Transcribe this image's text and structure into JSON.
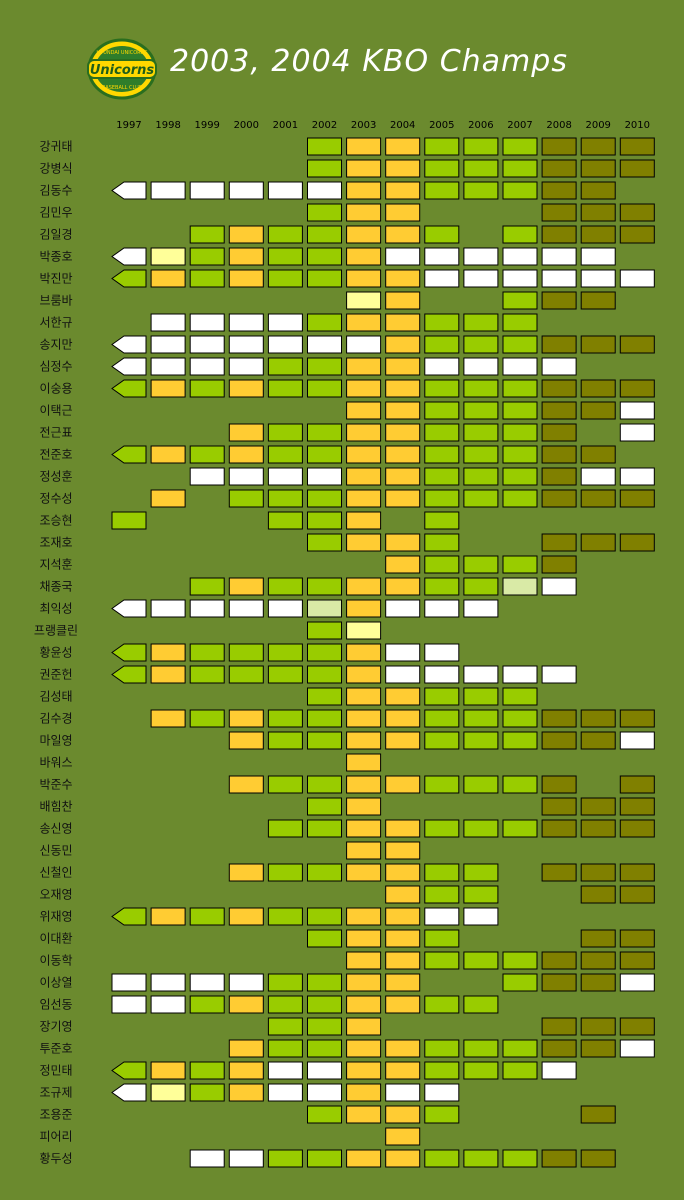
{
  "title": "2003, 2004 KBO Champs",
  "logo": {
    "top_text": "HYUNDAI UNICORNS",
    "main_text": "Unicorns",
    "bottom_text": "BASEBALL CLUB"
  },
  "colors": {
    "background": "#6b8a2e",
    "G": "#99cc00",
    "Y": "#ffcc33",
    "W": "#ffffff",
    "O": "#808000",
    "P": "#ffff99",
    "L": "#d9eaa6"
  },
  "chart_data": {
    "type": "heatmap",
    "years": [
      "1997",
      "1998",
      "1999",
      "2000",
      "2001",
      "2002",
      "2003",
      "2004",
      "2005",
      "2006",
      "2007",
      "2008",
      "2009",
      "2010"
    ],
    "legend_codes": {
      "G": "green",
      "Y": "yellow",
      "W": "white",
      "O": "olive",
      "P": "pale-yellow",
      "L": "pale-green",
      "A": "arrow (career began before 1997)"
    },
    "players": [
      {
        "name": "강귀태",
        "cells": [
          "",
          "",
          "",
          "",
          "",
          "G",
          "Y",
          "Y",
          "G",
          "G",
          "G",
          "O",
          "O",
          "O"
        ],
        "arrow": ""
      },
      {
        "name": "강병식",
        "cells": [
          "",
          "",
          "",
          "",
          "",
          "G",
          "Y",
          "Y",
          "G",
          "G",
          "G",
          "O",
          "O",
          "O"
        ],
        "arrow": ""
      },
      {
        "name": "김동수",
        "cells": [
          "W",
          "W",
          "W",
          "W",
          "W",
          "W",
          "Y",
          "Y",
          "G",
          "G",
          "G",
          "O",
          "O",
          ""
        ],
        "arrow": "W"
      },
      {
        "name": "김민우",
        "cells": [
          "",
          "",
          "",
          "",
          "",
          "G",
          "Y",
          "Y",
          "",
          "",
          "",
          "O",
          "O",
          "O"
        ],
        "arrow": ""
      },
      {
        "name": "김일경",
        "cells": [
          "",
          "",
          "G",
          "Y",
          "G",
          "G",
          "Y",
          "Y",
          "G",
          "",
          "G",
          "O",
          "O",
          "O"
        ],
        "arrow": ""
      },
      {
        "name": "박종호",
        "cells": [
          "W",
          "P",
          "G",
          "Y",
          "G",
          "G",
          "Y",
          "W",
          "W",
          "W",
          "W",
          "W",
          "W",
          ""
        ],
        "arrow": "W"
      },
      {
        "name": "박진만",
        "cells": [
          "G",
          "Y",
          "G",
          "Y",
          "G",
          "G",
          "Y",
          "Y",
          "W",
          "W",
          "W",
          "W",
          "W",
          "W"
        ],
        "arrow": "G"
      },
      {
        "name": "브룸바",
        "cells": [
          "",
          "",
          "",
          "",
          "",
          "",
          "P",
          "Y",
          "",
          "",
          "G",
          "O",
          "O",
          ""
        ],
        "arrow": ""
      },
      {
        "name": "서한규",
        "cells": [
          "",
          "W",
          "W",
          "W",
          "W",
          "G",
          "Y",
          "Y",
          "G",
          "G",
          "G",
          "",
          "",
          ""
        ],
        "arrow": ""
      },
      {
        "name": "송지만",
        "cells": [
          "W",
          "W",
          "W",
          "W",
          "W",
          "W",
          "W",
          "Y",
          "G",
          "G",
          "G",
          "O",
          "O",
          "O"
        ],
        "arrow": "W"
      },
      {
        "name": "심정수",
        "cells": [
          "W",
          "W",
          "W",
          "W",
          "G",
          "G",
          "Y",
          "Y",
          "W",
          "W",
          "W",
          "W",
          "",
          ""
        ],
        "arrow": "W"
      },
      {
        "name": "이숭용",
        "cells": [
          "G",
          "Y",
          "G",
          "Y",
          "G",
          "G",
          "Y",
          "Y",
          "G",
          "G",
          "G",
          "O",
          "O",
          "O"
        ],
        "arrow": "G"
      },
      {
        "name": "이택근",
        "cells": [
          "",
          "",
          "",
          "",
          "",
          "",
          "Y",
          "Y",
          "G",
          "G",
          "G",
          "O",
          "O",
          "W"
        ],
        "arrow": ""
      },
      {
        "name": "전근표",
        "cells": [
          "",
          "",
          "",
          "Y",
          "G",
          "G",
          "Y",
          "Y",
          "G",
          "G",
          "G",
          "O",
          "",
          "W"
        ],
        "arrow": ""
      },
      {
        "name": "전준호",
        "cells": [
          "G",
          "Y",
          "G",
          "Y",
          "G",
          "G",
          "Y",
          "Y",
          "G",
          "G",
          "G",
          "O",
          "O",
          ""
        ],
        "arrow": "G"
      },
      {
        "name": "정성훈",
        "cells": [
          "",
          "",
          "W",
          "W",
          "W",
          "W",
          "Y",
          "Y",
          "G",
          "G",
          "G",
          "O",
          "W",
          "W"
        ],
        "arrow": ""
      },
      {
        "name": "정수성",
        "cells": [
          "",
          "Y",
          "",
          "G",
          "G",
          "G",
          "Y",
          "Y",
          "G",
          "G",
          "G",
          "O",
          "O",
          "O"
        ],
        "arrow": ""
      },
      {
        "name": "조승현",
        "cells": [
          "G",
          "",
          "",
          "",
          "G",
          "G",
          "Y",
          "",
          "G",
          "",
          "",
          "",
          "",
          ""
        ],
        "arrow": ""
      },
      {
        "name": "조재호",
        "cells": [
          "",
          "",
          "",
          "",
          "",
          "G",
          "Y",
          "Y",
          "G",
          "",
          "",
          "O",
          "O",
          "O"
        ],
        "arrow": ""
      },
      {
        "name": "지석훈",
        "cells": [
          "",
          "",
          "",
          "",
          "",
          "",
          "",
          "Y",
          "G",
          "G",
          "G",
          "O",
          "",
          ""
        ],
        "arrow": ""
      },
      {
        "name": "채종국",
        "cells": [
          "",
          "",
          "G",
          "Y",
          "G",
          "G",
          "Y",
          "Y",
          "G",
          "G",
          "L",
          "W",
          "",
          ""
        ],
        "arrow": ""
      },
      {
        "name": "최익성",
        "cells": [
          "W",
          "W",
          "W",
          "W",
          "W",
          "L",
          "Y",
          "W",
          "W",
          "W",
          "",
          "",
          "",
          ""
        ],
        "arrow": "W"
      },
      {
        "name": "프랭클린",
        "cells": [
          "",
          "",
          "",
          "",
          "",
          "G",
          "P",
          "",
          "",
          "",
          "",
          "",
          "",
          ""
        ],
        "arrow": ""
      },
      {
        "name": "황윤성",
        "cells": [
          "G",
          "Y",
          "G",
          "G",
          "G",
          "G",
          "Y",
          "W",
          "W",
          "",
          "",
          "",
          "",
          ""
        ],
        "arrow": "G"
      },
      {
        "name": "권준헌",
        "cells": [
          "G",
          "Y",
          "G",
          "G",
          "G",
          "G",
          "Y",
          "W",
          "W",
          "W",
          "W",
          "W",
          "",
          ""
        ],
        "arrow": "G"
      },
      {
        "name": "김성태",
        "cells": [
          "",
          "",
          "",
          "",
          "",
          "G",
          "Y",
          "Y",
          "G",
          "G",
          "G",
          "",
          "",
          ""
        ],
        "arrow": ""
      },
      {
        "name": "김수경",
        "cells": [
          "",
          "Y",
          "G",
          "Y",
          "G",
          "G",
          "Y",
          "Y",
          "G",
          "G",
          "G",
          "O",
          "O",
          "O"
        ],
        "arrow": ""
      },
      {
        "name": "마일영",
        "cells": [
          "",
          "",
          "",
          "Y",
          "G",
          "G",
          "Y",
          "Y",
          "G",
          "G",
          "G",
          "O",
          "O",
          "W"
        ],
        "arrow": ""
      },
      {
        "name": "바워스",
        "cells": [
          "",
          "",
          "",
          "",
          "",
          "",
          "Y",
          "",
          "",
          "",
          "",
          "",
          "",
          ""
        ],
        "arrow": ""
      },
      {
        "name": "박준수",
        "cells": [
          "",
          "",
          "",
          "Y",
          "G",
          "G",
          "Y",
          "Y",
          "G",
          "G",
          "G",
          "O",
          "",
          "O"
        ],
        "arrow": ""
      },
      {
        "name": "배힘찬",
        "cells": [
          "",
          "",
          "",
          "",
          "",
          "G",
          "Y",
          "",
          "",
          "",
          "",
          "O",
          "O",
          "O"
        ],
        "arrow": ""
      },
      {
        "name": "송신영",
        "cells": [
          "",
          "",
          "",
          "",
          "G",
          "G",
          "Y",
          "Y",
          "G",
          "G",
          "G",
          "O",
          "O",
          "O"
        ],
        "arrow": ""
      },
      {
        "name": "신동민",
        "cells": [
          "",
          "",
          "",
          "",
          "",
          "",
          "Y",
          "Y",
          "",
          "",
          "",
          "",
          "",
          ""
        ],
        "arrow": ""
      },
      {
        "name": "신철인",
        "cells": [
          "",
          "",
          "",
          "Y",
          "G",
          "G",
          "Y",
          "Y",
          "G",
          "G",
          "",
          "O",
          "O",
          "O"
        ],
        "arrow": ""
      },
      {
        "name": "오재영",
        "cells": [
          "",
          "",
          "",
          "",
          "",
          "",
          "",
          "Y",
          "G",
          "G",
          "",
          "",
          "O",
          "O"
        ],
        "arrow": ""
      },
      {
        "name": "위재영",
        "cells": [
          "G",
          "Y",
          "G",
          "Y",
          "G",
          "G",
          "Y",
          "Y",
          "W",
          "W",
          "",
          "",
          "",
          ""
        ],
        "arrow": "G"
      },
      {
        "name": "이대환",
        "cells": [
          "",
          "",
          "",
          "",
          "",
          "G",
          "Y",
          "Y",
          "G",
          "",
          "",
          "",
          "O",
          "O"
        ],
        "arrow": ""
      },
      {
        "name": "이동학",
        "cells": [
          "",
          "",
          "",
          "",
          "",
          "",
          "Y",
          "Y",
          "G",
          "G",
          "G",
          "O",
          "O",
          "O"
        ],
        "arrow": ""
      },
      {
        "name": "이상열",
        "cells": [
          "W",
          "W",
          "W",
          "W",
          "G",
          "G",
          "Y",
          "Y",
          "",
          "",
          "G",
          "O",
          "O",
          "W"
        ],
        "arrow": ""
      },
      {
        "name": "임선동",
        "cells": [
          "W",
          "W",
          "G",
          "Y",
          "G",
          "G",
          "Y",
          "Y",
          "G",
          "G",
          "",
          "",
          "",
          ""
        ],
        "arrow": ""
      },
      {
        "name": "장기영",
        "cells": [
          "",
          "",
          "",
          "",
          "G",
          "G",
          "Y",
          "",
          "",
          "",
          "",
          "O",
          "O",
          "O"
        ],
        "arrow": ""
      },
      {
        "name": "투준호",
        "cells": [
          "",
          "",
          "",
          "Y",
          "G",
          "G",
          "Y",
          "Y",
          "G",
          "G",
          "G",
          "O",
          "O",
          "W"
        ],
        "arrow": ""
      },
      {
        "name": "정민태",
        "cells": [
          "G",
          "Y",
          "G",
          "Y",
          "W",
          "W",
          "Y",
          "Y",
          "G",
          "G",
          "G",
          "W",
          "",
          ""
        ],
        "arrow": "G"
      },
      {
        "name": "조규제",
        "cells": [
          "W",
          "P",
          "G",
          "Y",
          "W",
          "W",
          "Y",
          "W",
          "W",
          "",
          "",
          "",
          "",
          ""
        ],
        "arrow": "W"
      },
      {
        "name": "조용준",
        "cells": [
          "",
          "",
          "",
          "",
          "",
          "G",
          "Y",
          "Y",
          "G",
          "",
          "",
          "",
          "O",
          ""
        ],
        "arrow": ""
      },
      {
        "name": "피어리",
        "cells": [
          "",
          "",
          "",
          "",
          "",
          "",
          "",
          "Y",
          "",
          "",
          "",
          "",
          "",
          ""
        ],
        "arrow": ""
      },
      {
        "name": "황두성",
        "cells": [
          "",
          "",
          "W",
          "W",
          "G",
          "G",
          "Y",
          "Y",
          "G",
          "G",
          "G",
          "O",
          "O",
          ""
        ],
        "arrow": ""
      }
    ]
  }
}
